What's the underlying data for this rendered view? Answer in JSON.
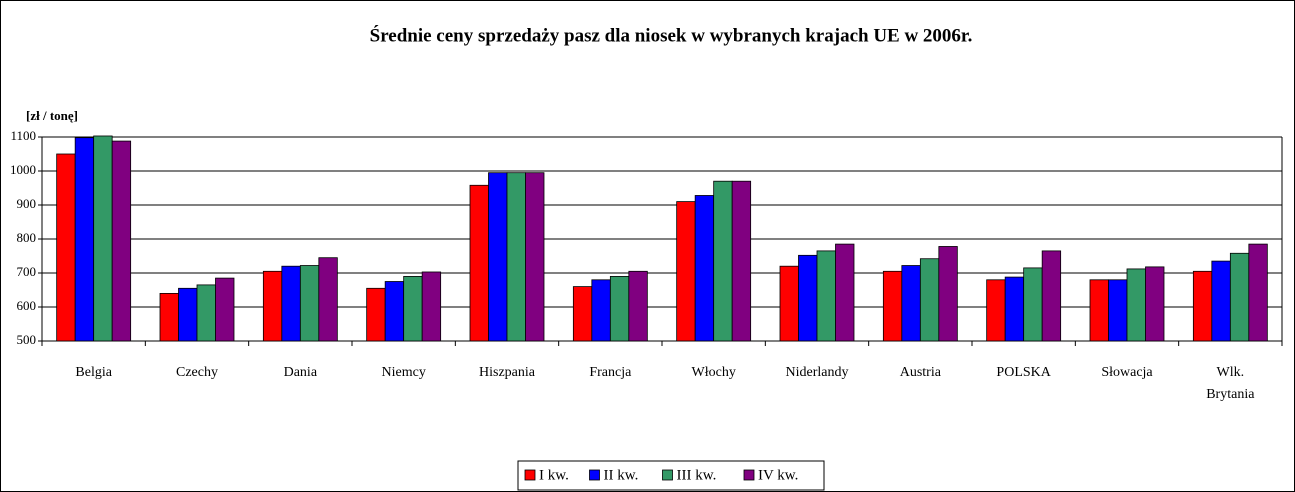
{
  "chart_data": {
    "type": "bar",
    "title": "Średnie ceny sprzedaży pasz dla niosek w wybranych krajach UE w 2006r.",
    "y_label": "[zł / tonę]",
    "categories": [
      "Belgia",
      "Czechy",
      "Dania",
      "Niemcy",
      "Hiszpania",
      "Francja",
      "Włochy",
      "Niderlandy",
      "Austria",
      "POLSKA",
      "Słowacja",
      "Wlk. Brytania"
    ],
    "series": [
      {
        "name": "I kw.",
        "color": "#ff0000",
        "values": [
          1050,
          640,
          705,
          655,
          958,
          660,
          910,
          720,
          705,
          680,
          680,
          705
        ]
      },
      {
        "name": "II kw.",
        "color": "#0000ff",
        "values": [
          1098,
          655,
          720,
          675,
          995,
          680,
          928,
          752,
          722,
          688,
          680,
          735
        ]
      },
      {
        "name": "III kw.",
        "color": "#339966",
        "values": [
          1103,
          665,
          722,
          690,
          995,
          690,
          970,
          765,
          742,
          715,
          712,
          758
        ]
      },
      {
        "name": "IV kw.",
        "color": "#800080",
        "values": [
          1088,
          685,
          745,
          703,
          995,
          705,
          970,
          785,
          778,
          765,
          718,
          785
        ]
      }
    ],
    "ylim": [
      500,
      1100
    ],
    "yticks": [
      500,
      600,
      700,
      800,
      900,
      1000,
      1100
    ],
    "grid": true,
    "legend": "bottom"
  }
}
